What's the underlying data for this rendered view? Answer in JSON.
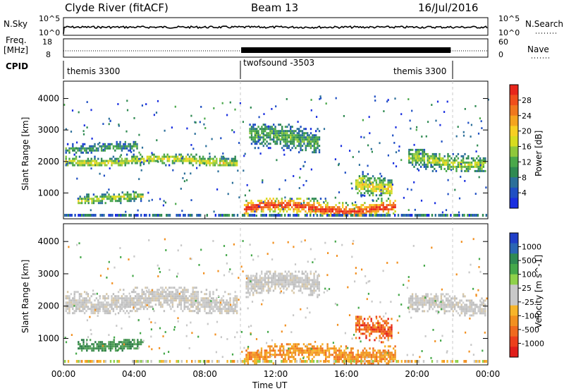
{
  "header": {
    "station": "Clyde River (fitACF)",
    "beam": "Beam 13",
    "date": "16/Jul/2016"
  },
  "top_panels": {
    "nsky_label": "N.Sky",
    "nsky_ticks": [
      "10^5",
      "10^0"
    ],
    "nsearch_label": "N.Search",
    "nsearch_ticks": [
      "10^5",
      "10^0"
    ],
    "freq_label": "Freq.",
    "freq_unit": "[MHz]",
    "freq_ticks": [
      "18",
      "8"
    ],
    "nave_label": "Nave",
    "nave_ticks": [
      "60",
      "0"
    ],
    "cpid_label": "CPID",
    "cpid_segments": [
      {
        "name": "themis 3300",
        "start_h": 0,
        "end_h": 10
      },
      {
        "name": "twofsound -3503",
        "start_h": 10,
        "end_h": 22
      },
      {
        "name": "themis 3300",
        "start_h": 22,
        "end_h": 24
      }
    ]
  },
  "chart_data": [
    {
      "type": "heatmap",
      "parameter": "Power",
      "ylabel": "Slant Range [km]",
      "xlabel": "Time UT",
      "x_ticks": [
        "00:00",
        "04:00",
        "08:00",
        "12:00",
        "16:00",
        "20:00",
        "00:00"
      ],
      "x_tick_hours": [
        0,
        4,
        8,
        12,
        16,
        20,
        24
      ],
      "y_ticks": [
        1000,
        2000,
        3000,
        4000
      ],
      "ylim": [
        180,
        4550
      ],
      "xlim_hours": [
        0,
        24
      ],
      "colorbar_label": "Power [dB]",
      "colorbar_ticks": [
        "28",
        "24",
        "20",
        "16",
        "12",
        "8",
        "4"
      ],
      "colorbar_colors": [
        "#e8261b",
        "#f04f1c",
        "#f0781e",
        "#f5a41f",
        "#f7cf23",
        "#d7dc20",
        "#8fc83b",
        "#4aa84a",
        "#2f8a52",
        "#2b6f9a",
        "#1f4fc3",
        "#1a2fe0"
      ],
      "regions": [
        {
          "t0": 0.1,
          "t1": 9.8,
          "r0": 1850,
          "r1": 2250,
          "level": 0.5
        },
        {
          "t0": 0.1,
          "t1": 4.2,
          "r0": 2300,
          "r1": 2650,
          "level": 0.3
        },
        {
          "t0": 0.8,
          "t1": 4.5,
          "r0": 650,
          "r1": 1050,
          "level": 0.45
        },
        {
          "t0": 10.2,
          "t1": 18.8,
          "r0": 250,
          "r1": 850,
          "level": 0.85
        },
        {
          "t0": 10.5,
          "t1": 14.5,
          "r0": 2300,
          "r1": 3200,
          "level": 0.35
        },
        {
          "t0": 19.5,
          "t1": 23.9,
          "r0": 1700,
          "r1": 2400,
          "level": 0.45
        },
        {
          "t0": 16.5,
          "t1": 18.6,
          "r0": 900,
          "r1": 1700,
          "level": 0.55
        }
      ]
    },
    {
      "type": "heatmap",
      "parameter": "Velocity",
      "ylabel": "Slant Range [km]",
      "xlabel": "Time UT",
      "x_ticks": [
        "00:00",
        "04:00",
        "08:00",
        "12:00",
        "16:00",
        "20:00",
        "00:00"
      ],
      "x_tick_hours": [
        0,
        4,
        8,
        12,
        16,
        20,
        24
      ],
      "y_ticks": [
        1000,
        2000,
        3000,
        4000
      ],
      "ylim": [
        180,
        4550
      ],
      "xlim_hours": [
        0,
        24
      ],
      "colorbar_label": "Velocity [m s^-1]",
      "colorbar_ticks": [
        "1000",
        "500",
        "100",
        "25",
        "-25",
        "-100",
        "-500",
        "-1000"
      ],
      "colorbar_colors": [
        "#1f3fc8",
        "#2a66b4",
        "#2f8a52",
        "#45a84a",
        "#8fd14a",
        "#c8c8c8",
        "#c8c8c8",
        "#f7b52a",
        "#f29020",
        "#f06a1e",
        "#ec3f1c",
        "#e01e1b"
      ],
      "regions": [
        {
          "t0": 0.1,
          "t1": 9.8,
          "r0": 1750,
          "r1": 2600,
          "level": "gray"
        },
        {
          "t0": 0.8,
          "t1": 4.5,
          "r0": 650,
          "r1": 1050,
          "level": "green"
        },
        {
          "t0": 10.2,
          "t1": 18.8,
          "r0": 250,
          "r1": 850,
          "level": "orange"
        },
        {
          "t0": 10.3,
          "t1": 14.5,
          "r0": 2300,
          "r1": 3100,
          "level": "gray"
        },
        {
          "t0": 19.5,
          "t1": 23.9,
          "r0": 1700,
          "r1": 2400,
          "level": "gray"
        },
        {
          "t0": 16.5,
          "t1": 18.6,
          "r0": 900,
          "r1": 1700,
          "level": "red"
        }
      ]
    }
  ]
}
